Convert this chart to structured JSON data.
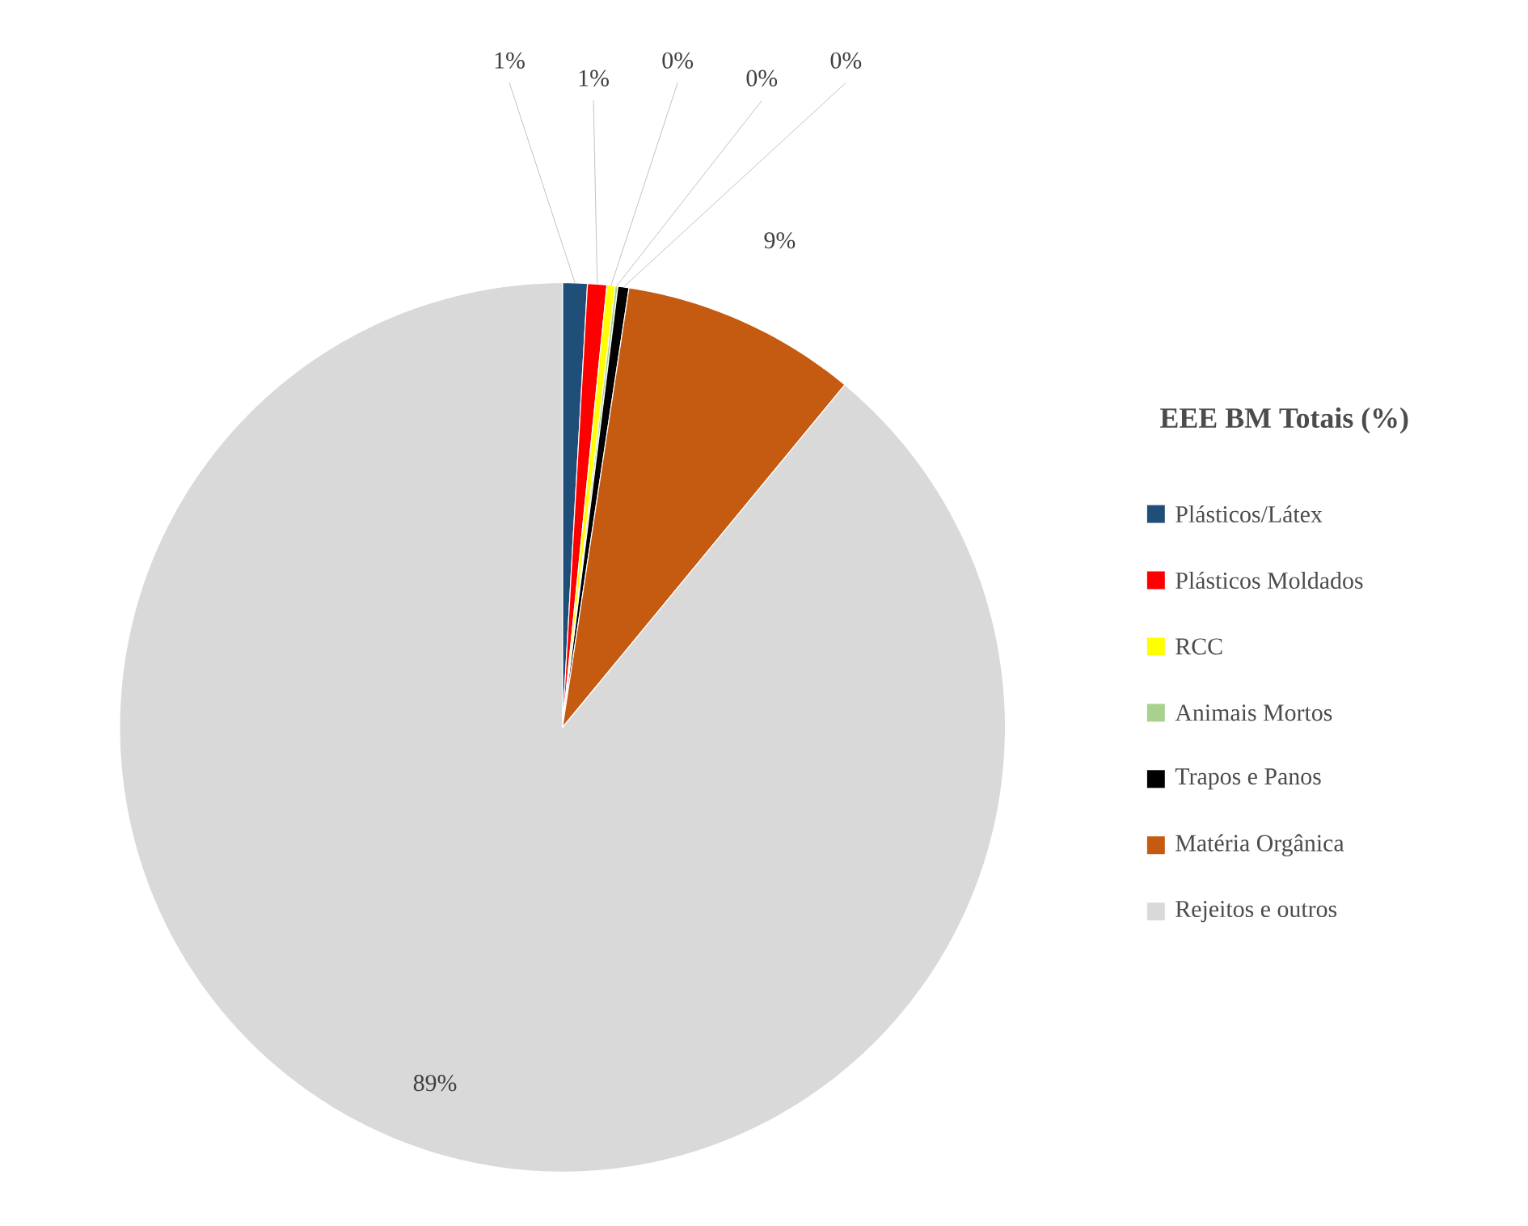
{
  "chart_data": {
    "type": "pie",
    "legend_title": "EEE BM Totais (%)",
    "legend": "right",
    "categories": [
      "Plásticos/Látex",
      "Plásticos Moldados",
      "RCC",
      "Animais Mortos",
      "Trapos e Panos",
      "Matéria Orgânica",
      "Rejeitos e outros"
    ],
    "values": [
      0.9,
      0.7,
      0.3,
      0.1,
      0.4,
      8.6,
      89.0
    ],
    "value_labels": [
      "1%",
      "1%",
      "0%",
      "0%",
      "0%",
      "9%",
      "89%"
    ],
    "colors": [
      "#1f4e79",
      "#ff0000",
      "#ffff00",
      "#a9d18e",
      "#000000",
      "#c55a11",
      "#d9d9d9"
    ]
  }
}
